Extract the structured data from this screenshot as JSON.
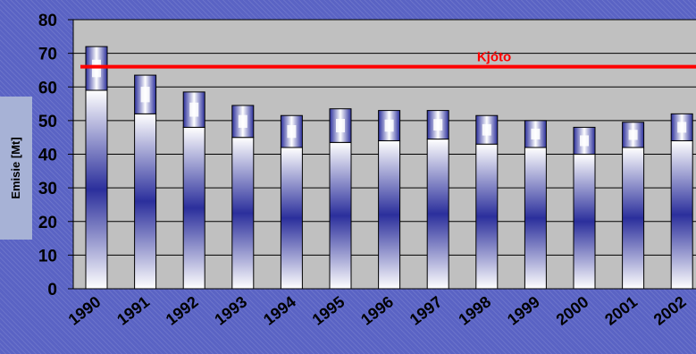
{
  "chart_data": {
    "type": "bar",
    "title": "",
    "xlabel": "",
    "ylabel": "Emisie [Mt]",
    "categories": [
      "1990",
      "1991",
      "1992",
      "1993",
      "1994",
      "1995",
      "1996",
      "1997",
      "1998",
      "1999",
      "2000",
      "2001",
      "2002"
    ],
    "series": [
      {
        "values": [
          72,
          63.5,
          58.5,
          54.5,
          51.5,
          53.5,
          53,
          53,
          51.5,
          50,
          48,
          49.5,
          52
        ]
      }
    ],
    "band_lower": [
      59,
      52,
      48,
      45,
      42,
      43.5,
      44,
      44.5,
      43,
      42,
      40,
      42,
      44
    ],
    "ylim": [
      0,
      80
    ],
    "yticks": [
      0,
      10,
      20,
      30,
      40,
      50,
      60,
      70,
      80
    ],
    "grid": true,
    "reference_line": {
      "label": "Kjóto",
      "value": 66,
      "color": "#ff0000"
    },
    "colors": {
      "plot_background": "#c0c0c0",
      "bar_fill": "#ffffff",
      "bar_accent": "#2b2f9c",
      "gridline": "#000000"
    }
  }
}
